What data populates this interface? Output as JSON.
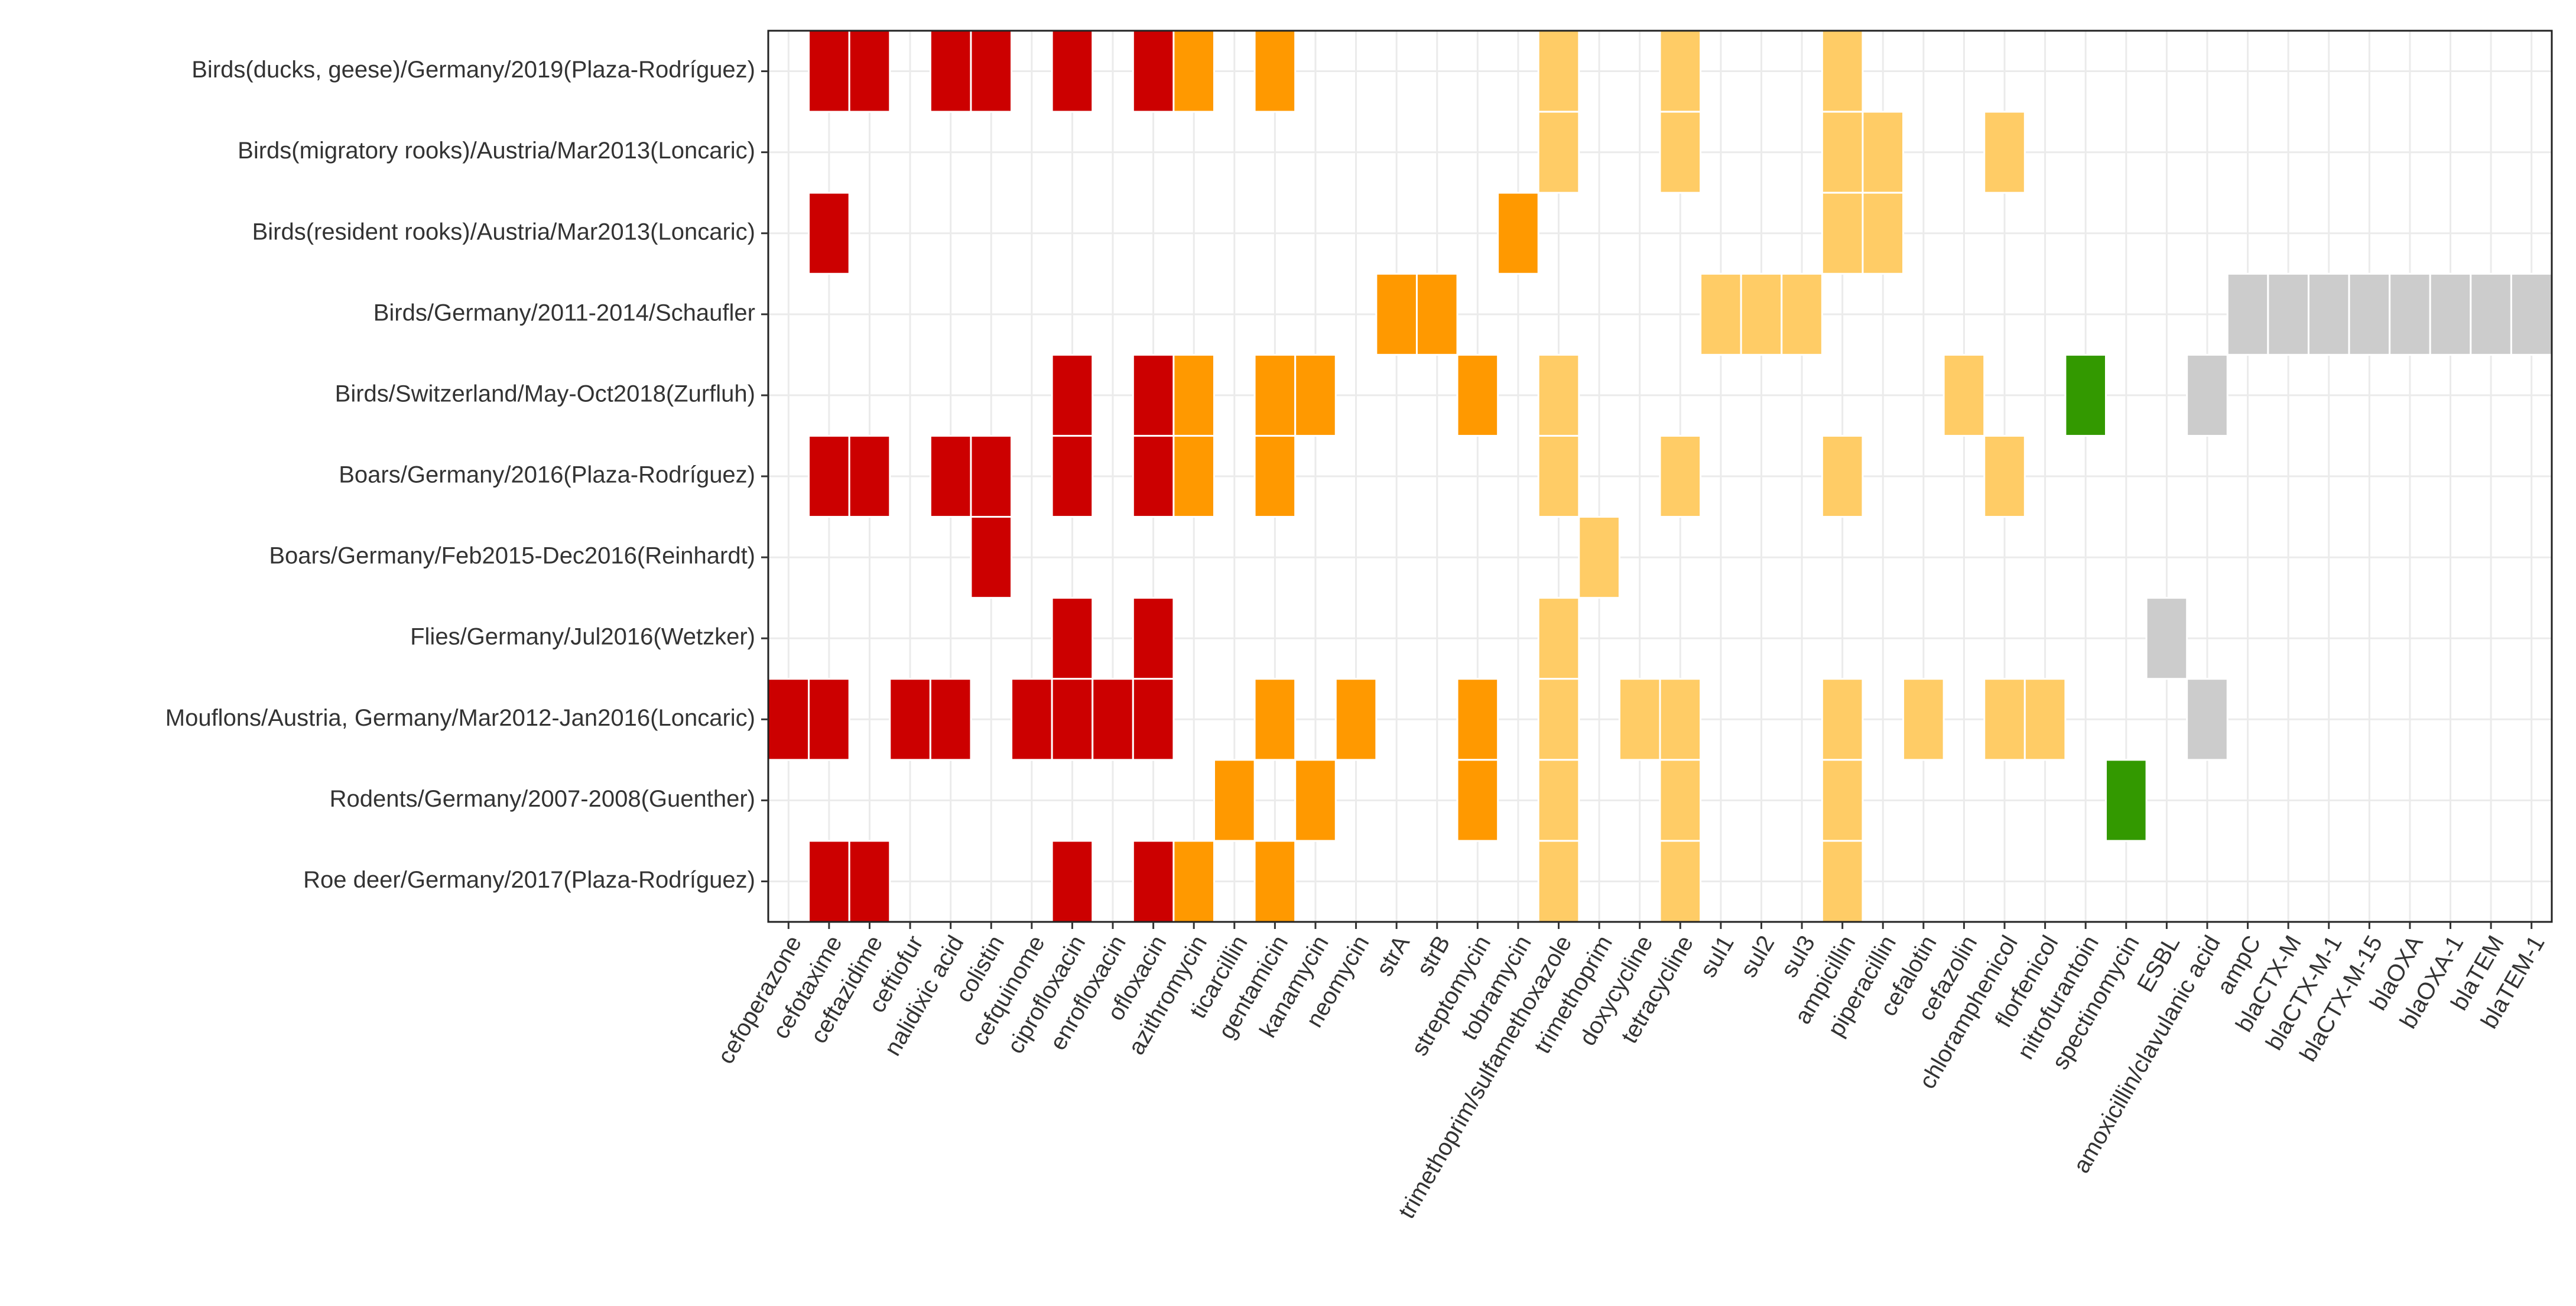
{
  "chart_data": {
    "type": "heatmap",
    "title": "",
    "xlabel": "",
    "ylabel": "",
    "grid": true,
    "legend": "none",
    "colors": {
      "red": "#cc0000",
      "orange": "#ff9900",
      "light_orange": "#ffcc66",
      "green": "#339900",
      "grey": "#cccccc",
      "background": "#ffffff",
      "grid": "#ebebeb"
    },
    "x_categories": [
      "cefoperazone",
      "cefotaxime",
      "ceftazidime",
      "ceftiofur",
      "nalidixic acid",
      "colistin",
      "cefquinome",
      "ciprofloxacin",
      "enrofloxacin",
      "ofloxacin",
      "azithromycin",
      "ticarcillin",
      "gentamicin",
      "kanamycin",
      "neomycin",
      "strA",
      "strB",
      "streptomycin",
      "tobramycin",
      "trimethoprim/sulfamethoxazole",
      "trimethoprim",
      "doxycycline",
      "tetracycline",
      "sul1",
      "sul2",
      "sul3",
      "ampicillin",
      "piperacillin",
      "cefalotin",
      "cefazolin",
      "chloramphenicol",
      "florfenicol",
      "nitrofurantoin",
      "spectinomycin",
      "ESBL",
      "amoxicillin/clavulanic acid",
      "ampC",
      "blaCTX-M",
      "blaCTX-M-1",
      "blaCTX-M-15",
      "blaOXA",
      "blaOXA-1",
      "blaTEM",
      "blaTEM-1"
    ],
    "y_categories": [
      "Birds(ducks, geese)/Germany/2019(Plaza-Rodríguez)",
      "Birds(migratory rooks)/Austria/Mar2013(Loncaric)",
      "Birds(resident rooks)/Austria/Mar2013(Loncaric)",
      "Birds/Germany/2011-2014/Schaufler",
      "Birds/Switzerland/May-Oct2018(Zurfluh)",
      "Boars/Germany/2016(Plaza-Rodríguez)",
      "Boars/Germany/Feb2015-Dec2016(Reinhardt)",
      "Flies/Germany/Jul2016(Wetzker)",
      "Mouflons/Austria, Germany/Mar2012-Jan2016(Loncaric)",
      "Rodents/Germany/2007-2008(Guenther)",
      "Roe deer/Germany/2017(Plaza-Rodríguez)"
    ],
    "cells": [
      {
        "row": 0,
        "col": 1,
        "color": "red"
      },
      {
        "row": 0,
        "col": 2,
        "color": "red"
      },
      {
        "row": 0,
        "col": 4,
        "color": "red"
      },
      {
        "row": 0,
        "col": 5,
        "color": "red"
      },
      {
        "row": 0,
        "col": 7,
        "color": "red"
      },
      {
        "row": 0,
        "col": 9,
        "color": "red"
      },
      {
        "row": 0,
        "col": 10,
        "color": "orange"
      },
      {
        "row": 0,
        "col": 12,
        "color": "orange"
      },
      {
        "row": 0,
        "col": 19,
        "color": "light_orange"
      },
      {
        "row": 0,
        "col": 22,
        "color": "light_orange"
      },
      {
        "row": 0,
        "col": 26,
        "color": "light_orange"
      },
      {
        "row": 1,
        "col": 19,
        "color": "light_orange"
      },
      {
        "row": 1,
        "col": 22,
        "color": "light_orange"
      },
      {
        "row": 1,
        "col": 26,
        "color": "light_orange"
      },
      {
        "row": 1,
        "col": 27,
        "color": "light_orange"
      },
      {
        "row": 1,
        "col": 30,
        "color": "light_orange"
      },
      {
        "row": 2,
        "col": 1,
        "color": "red"
      },
      {
        "row": 2,
        "col": 18,
        "color": "orange"
      },
      {
        "row": 2,
        "col": 26,
        "color": "light_orange"
      },
      {
        "row": 2,
        "col": 27,
        "color": "light_orange"
      },
      {
        "row": 3,
        "col": 15,
        "color": "orange"
      },
      {
        "row": 3,
        "col": 16,
        "color": "orange"
      },
      {
        "row": 3,
        "col": 23,
        "color": "light_orange"
      },
      {
        "row": 3,
        "col": 24,
        "color": "light_orange"
      },
      {
        "row": 3,
        "col": 25,
        "color": "light_orange"
      },
      {
        "row": 3,
        "col": 36,
        "color": "grey"
      },
      {
        "row": 3,
        "col": 37,
        "color": "grey"
      },
      {
        "row": 3,
        "col": 38,
        "color": "grey"
      },
      {
        "row": 3,
        "col": 39,
        "color": "grey"
      },
      {
        "row": 3,
        "col": 40,
        "color": "grey"
      },
      {
        "row": 3,
        "col": 41,
        "color": "grey"
      },
      {
        "row": 3,
        "col": 42,
        "color": "grey"
      },
      {
        "row": 3,
        "col": 43,
        "color": "grey"
      },
      {
        "row": 4,
        "col": 7,
        "color": "red"
      },
      {
        "row": 4,
        "col": 9,
        "color": "red"
      },
      {
        "row": 4,
        "col": 10,
        "color": "orange"
      },
      {
        "row": 4,
        "col": 12,
        "color": "orange"
      },
      {
        "row": 4,
        "col": 13,
        "color": "orange"
      },
      {
        "row": 4,
        "col": 17,
        "color": "orange"
      },
      {
        "row": 4,
        "col": 19,
        "color": "light_orange"
      },
      {
        "row": 4,
        "col": 29,
        "color": "light_orange"
      },
      {
        "row": 4,
        "col": 32,
        "color": "green"
      },
      {
        "row": 4,
        "col": 35,
        "color": "grey"
      },
      {
        "row": 5,
        "col": 1,
        "color": "red"
      },
      {
        "row": 5,
        "col": 2,
        "color": "red"
      },
      {
        "row": 5,
        "col": 4,
        "color": "red"
      },
      {
        "row": 5,
        "col": 5,
        "color": "red"
      },
      {
        "row": 5,
        "col": 7,
        "color": "red"
      },
      {
        "row": 5,
        "col": 9,
        "color": "red"
      },
      {
        "row": 5,
        "col": 10,
        "color": "orange"
      },
      {
        "row": 5,
        "col": 12,
        "color": "orange"
      },
      {
        "row": 5,
        "col": 19,
        "color": "light_orange"
      },
      {
        "row": 5,
        "col": 22,
        "color": "light_orange"
      },
      {
        "row": 5,
        "col": 26,
        "color": "light_orange"
      },
      {
        "row": 5,
        "col": 30,
        "color": "light_orange"
      },
      {
        "row": 6,
        "col": 5,
        "color": "red"
      },
      {
        "row": 6,
        "col": 20,
        "color": "light_orange"
      },
      {
        "row": 7,
        "col": 7,
        "color": "red"
      },
      {
        "row": 7,
        "col": 9,
        "color": "red"
      },
      {
        "row": 7,
        "col": 19,
        "color": "light_orange"
      },
      {
        "row": 7,
        "col": 34,
        "color": "grey"
      },
      {
        "row": 8,
        "col": 0,
        "color": "red"
      },
      {
        "row": 8,
        "col": 1,
        "color": "red"
      },
      {
        "row": 8,
        "col": 3,
        "color": "red"
      },
      {
        "row": 8,
        "col": 4,
        "color": "red"
      },
      {
        "row": 8,
        "col": 6,
        "color": "red"
      },
      {
        "row": 8,
        "col": 7,
        "color": "red"
      },
      {
        "row": 8,
        "col": 8,
        "color": "red"
      },
      {
        "row": 8,
        "col": 9,
        "color": "red"
      },
      {
        "row": 8,
        "col": 12,
        "color": "orange"
      },
      {
        "row": 8,
        "col": 14,
        "color": "orange"
      },
      {
        "row": 8,
        "col": 17,
        "color": "orange"
      },
      {
        "row": 8,
        "col": 19,
        "color": "light_orange"
      },
      {
        "row": 8,
        "col": 21,
        "color": "light_orange"
      },
      {
        "row": 8,
        "col": 22,
        "color": "light_orange"
      },
      {
        "row": 8,
        "col": 26,
        "color": "light_orange"
      },
      {
        "row": 8,
        "col": 28,
        "color": "light_orange"
      },
      {
        "row": 8,
        "col": 30,
        "color": "light_orange"
      },
      {
        "row": 8,
        "col": 31,
        "color": "light_orange"
      },
      {
        "row": 8,
        "col": 35,
        "color": "grey"
      },
      {
        "row": 9,
        "col": 11,
        "color": "orange"
      },
      {
        "row": 9,
        "col": 13,
        "color": "orange"
      },
      {
        "row": 9,
        "col": 17,
        "color": "orange"
      },
      {
        "row": 9,
        "col": 19,
        "color": "light_orange"
      },
      {
        "row": 9,
        "col": 22,
        "color": "light_orange"
      },
      {
        "row": 9,
        "col": 26,
        "color": "light_orange"
      },
      {
        "row": 9,
        "col": 33,
        "color": "green"
      },
      {
        "row": 10,
        "col": 1,
        "color": "red"
      },
      {
        "row": 10,
        "col": 2,
        "color": "red"
      },
      {
        "row": 10,
        "col": 7,
        "color": "red"
      },
      {
        "row": 10,
        "col": 9,
        "color": "red"
      },
      {
        "row": 10,
        "col": 10,
        "color": "orange"
      },
      {
        "row": 10,
        "col": 12,
        "color": "orange"
      },
      {
        "row": 10,
        "col": 19,
        "color": "light_orange"
      },
      {
        "row": 10,
        "col": 22,
        "color": "light_orange"
      },
      {
        "row": 10,
        "col": 26,
        "color": "light_orange"
      }
    ]
  }
}
